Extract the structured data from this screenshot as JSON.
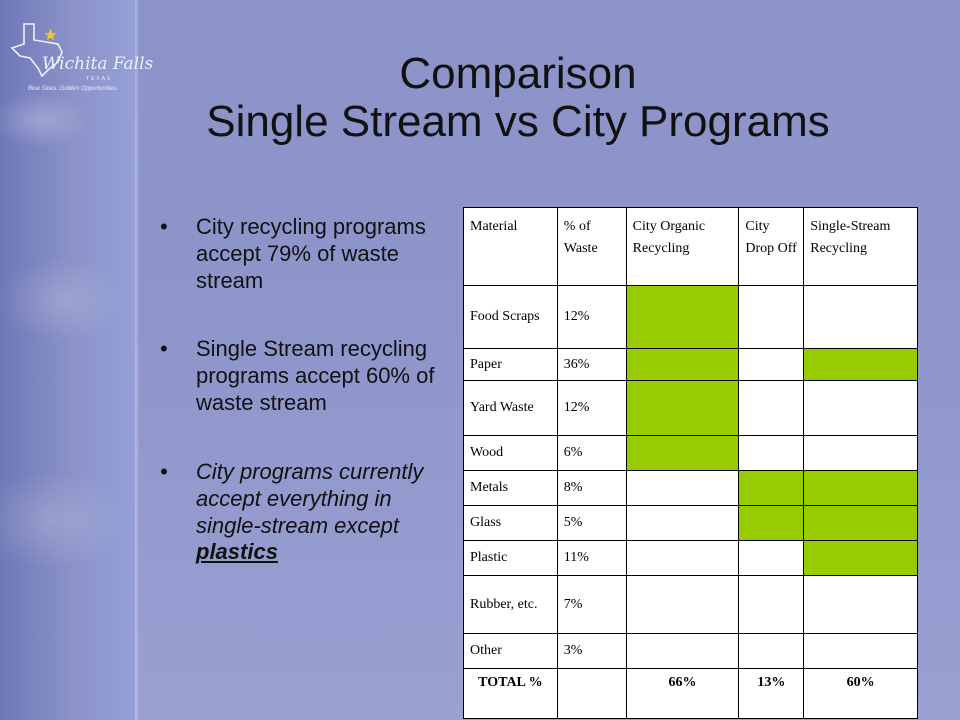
{
  "logo": {
    "name": "Wichita Falls",
    "state": "TEXAS",
    "tagline": "Blue Skies. Golden Opportunities."
  },
  "title": {
    "line1": "Comparison",
    "line2": "Single Stream vs City Programs"
  },
  "bullets": [
    "City recycling programs accept 79% of waste stream",
    "Single Stream recycling programs accept 60% of waste stream",
    "City programs currently accept everything in single-stream except"
  ],
  "bullet3_emphasis": "plastics",
  "colors": {
    "accepted": "#99cc00",
    "background": "#8b93c9"
  },
  "table": {
    "headers": [
      "Material",
      "% of Waste",
      "City Organic Recycling",
      "City Drop Off",
      "Single-Stream Recycling"
    ],
    "rows": [
      {
        "material": "Food Scraps",
        "pct": "12%",
        "organic": true,
        "drop": false,
        "single": false
      },
      {
        "material": "Paper",
        "pct": "36%",
        "organic": true,
        "drop": false,
        "single": true
      },
      {
        "material": "Yard Waste",
        "pct": "12%",
        "organic": true,
        "drop": false,
        "single": false
      },
      {
        "material": "Wood",
        "pct": "6%",
        "organic": true,
        "drop": false,
        "single": false
      },
      {
        "material": "Metals",
        "pct": "8%",
        "organic": false,
        "drop": true,
        "single": true
      },
      {
        "material": "Glass",
        "pct": "5%",
        "organic": false,
        "drop": true,
        "single": true
      },
      {
        "material": "Plastic",
        "pct": "11%",
        "organic": false,
        "drop": false,
        "single": true
      },
      {
        "material": "Rubber, etc.",
        "pct": "7%",
        "organic": false,
        "drop": false,
        "single": false
      },
      {
        "material": "Other",
        "pct": "3%",
        "organic": false,
        "drop": false,
        "single": false
      }
    ],
    "total": {
      "label": "TOTAL %",
      "pct": "",
      "organic": "66%",
      "drop": "13%",
      "single": "60%"
    }
  }
}
